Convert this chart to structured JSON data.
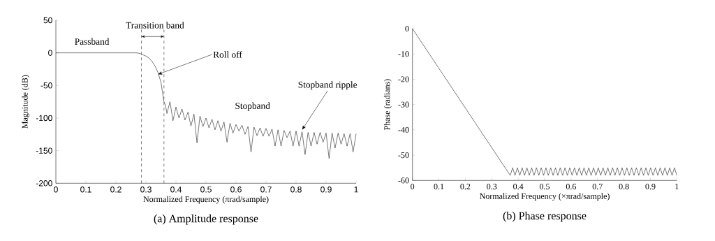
{
  "chart_data": [
    {
      "type": "line",
      "title": "(a) Amplitude response",
      "xlabel": "Normalized Frequency  (πrad/sample)",
      "ylabel": "Magnitude (dB)",
      "xlim": [
        0,
        1
      ],
      "ylim": [
        -200,
        50
      ],
      "xticks": [
        0,
        0.1,
        0.2,
        0.3,
        0.4,
        0.5,
        0.6,
        0.7,
        0.8,
        0.9,
        1
      ],
      "yticks": [
        -200,
        -150,
        -100,
        -50,
        0,
        50
      ],
      "series": [
        {
          "color": "#000000",
          "x": [
            0,
            0.1,
            0.2,
            0.25,
            0.27,
            0.28,
            0.29,
            0.3,
            0.31,
            0.32,
            0.33,
            0.34,
            0.35,
            0.355,
            0.36,
            0.365,
            0.37,
            0.38,
            0.39,
            0.4,
            0.41,
            0.42,
            0.43,
            0.44,
            0.45,
            0.46,
            0.47,
            0.48,
            0.49,
            0.5,
            0.51,
            0.52,
            0.53,
            0.54,
            0.55,
            0.56,
            0.57,
            0.58,
            0.59,
            0.6,
            0.61,
            0.62,
            0.63,
            0.64,
            0.65,
            0.66,
            0.67,
            0.68,
            0.69,
            0.7,
            0.71,
            0.72,
            0.73,
            0.74,
            0.75,
            0.76,
            0.77,
            0.78,
            0.79,
            0.8,
            0.81,
            0.82,
            0.83,
            0.84,
            0.85,
            0.86,
            0.87,
            0.88,
            0.89,
            0.9,
            0.91,
            0.92,
            0.93,
            0.94,
            0.95,
            0.96,
            0.97,
            0.98,
            0.99,
            1.0
          ],
          "values": [
            0,
            0,
            0,
            0,
            0,
            -1,
            -3,
            -5,
            -8,
            -13,
            -20,
            -30,
            -45,
            -60,
            -75,
            -80,
            -93,
            -75,
            -104,
            -83,
            -100,
            -86,
            -103,
            -91,
            -112,
            -94,
            -138,
            -97,
            -113,
            -100,
            -115,
            -102,
            -118,
            -104,
            -120,
            -106,
            -137,
            -108,
            -123,
            -110,
            -120,
            -111,
            -125,
            -113,
            -152,
            -114,
            -127,
            -115,
            -128,
            -116,
            -128,
            -117,
            -143,
            -118,
            -143,
            -119,
            -130,
            -120,
            -143,
            -120,
            -143,
            -121,
            -156,
            -122,
            -143,
            -122,
            -140,
            -122,
            -137,
            -123,
            -162,
            -123,
            -146,
            -123,
            -140,
            -124,
            -143,
            -124,
            -152,
            -124
          ]
        }
      ],
      "ref_lines": [
        {
          "axis": "x",
          "value": 0.285,
          "line_style": "dashed",
          "color": "#000000"
        },
        {
          "axis": "x",
          "value": 0.36,
          "line_style": "dashed",
          "color": "#000000"
        }
      ],
      "annotations": [
        "Passband",
        "Transition band",
        {
          "text": "Roll off",
          "x": 0.34,
          "y": -33
        },
        "Stopband",
        {
          "text": "Stopband ripple",
          "x": 0.82,
          "y": -118
        }
      ]
    },
    {
      "type": "line",
      "title": "(b) Phase response",
      "xlabel": "Normalized Frequency  (×πrad/sample)",
      "ylabel": "Phase (radians)",
      "xlim": [
        0,
        1
      ],
      "ylim": [
        -60,
        0
      ],
      "xticks": [
        0,
        0.1,
        0.2,
        0.3,
        0.4,
        0.5,
        0.6,
        0.7,
        0.8,
        0.9,
        1
      ],
      "yticks": [
        -60,
        -50,
        -40,
        -30,
        -20,
        -10,
        0
      ],
      "series": [
        {
          "color": "#000000",
          "x": [
            0,
            0.37,
            0.379,
            0.388,
            0.397,
            0.406,
            0.415,
            0.424,
            0.433,
            0.442,
            0.451,
            0.46,
            0.469,
            0.478,
            0.487,
            0.496,
            0.505,
            0.514,
            0.523,
            0.532,
            0.541,
            0.55,
            0.559,
            0.568,
            0.577,
            0.586,
            0.595,
            0.604,
            0.613,
            0.622,
            0.631,
            0.64,
            0.649,
            0.658,
            0.667,
            0.676,
            0.685,
            0.694,
            0.703,
            0.712,
            0.721,
            0.73,
            0.739,
            0.748,
            0.757,
            0.766,
            0.775,
            0.784,
            0.793,
            0.802,
            0.811,
            0.82,
            0.829,
            0.838,
            0.847,
            0.856,
            0.865,
            0.874,
            0.883,
            0.892,
            0.901,
            0.91,
            0.919,
            0.928,
            0.937,
            0.946,
            0.955,
            0.964,
            0.973,
            0.982,
            0.991,
            1.0
          ],
          "values": [
            0,
            -58,
            -55,
            -58,
            -55,
            -58,
            -55,
            -58,
            -55,
            -58,
            -55,
            -58,
            -55,
            -58,
            -55,
            -58,
            -55,
            -58,
            -55,
            -58,
            -55,
            -58,
            -55,
            -58,
            -55,
            -58,
            -55,
            -58,
            -55,
            -58,
            -55,
            -58,
            -55,
            -58,
            -55,
            -58,
            -55,
            -58,
            -55,
            -58,
            -55,
            -58,
            -55,
            -58,
            -55,
            -58,
            -55,
            -58,
            -55,
            -58,
            -55,
            -58,
            -55,
            -58,
            -55,
            -58,
            -55,
            -58,
            -55,
            -58,
            -55,
            -58,
            -55,
            -58,
            -55,
            -58,
            -55,
            -58,
            -55,
            -58,
            -55,
            -58
          ]
        }
      ]
    }
  ]
}
